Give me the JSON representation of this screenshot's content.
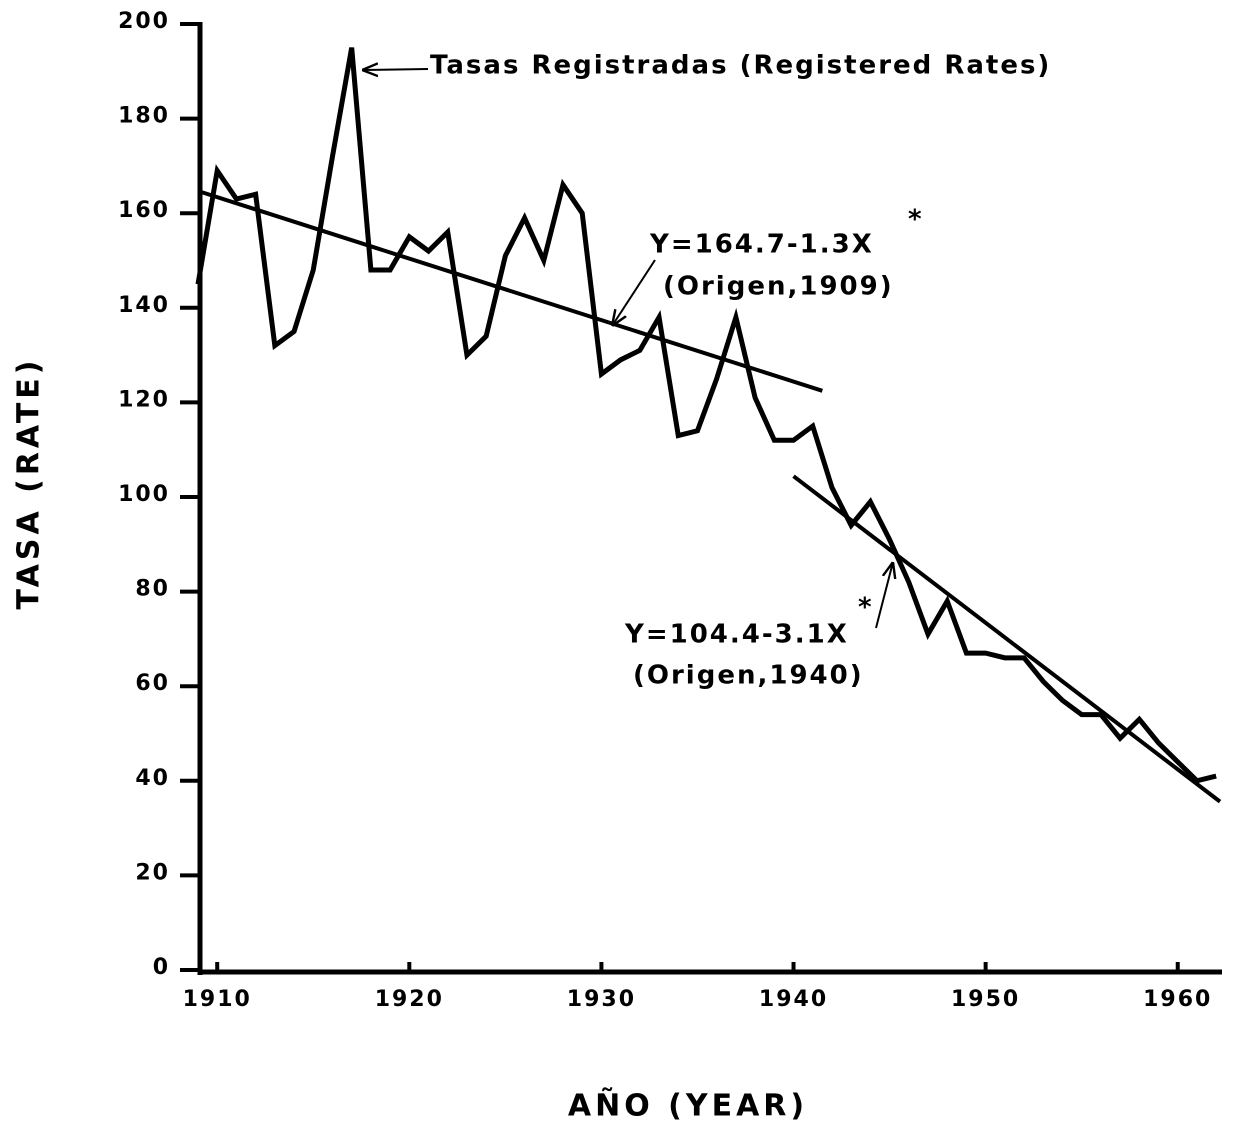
{
  "chart_data": {
    "type": "line",
    "xlabel": "AÑO (YEAR)",
    "ylabel": "TASA (RATE)",
    "x": [
      1909,
      1910,
      1911,
      1912,
      1913,
      1914,
      1915,
      1916,
      1917,
      1918,
      1919,
      1920,
      1921,
      1922,
      1923,
      1924,
      1925,
      1926,
      1927,
      1928,
      1929,
      1930,
      1931,
      1932,
      1933,
      1934,
      1935,
      1936,
      1937,
      1938,
      1939,
      1940,
      1941,
      1942,
      1943,
      1944,
      1945,
      1946,
      1947,
      1948,
      1949,
      1950,
      1951,
      1952,
      1953,
      1954,
      1955,
      1956,
      1957,
      1958,
      1959,
      1960,
      1961,
      1962
    ],
    "series": [
      {
        "color": "#000000",
        "values": [
          145,
          169,
          163,
          164,
          132,
          135,
          148,
          172,
          195,
          148,
          148,
          155,
          152,
          156,
          130,
          134,
          151,
          159,
          150,
          166,
          160,
          126,
          129,
          131,
          138,
          113,
          114,
          125,
          138,
          121,
          112,
          112,
          115,
          102,
          94,
          99,
          91,
          82,
          71,
          78,
          67,
          67,
          66,
          66,
          61,
          57,
          54,
          54,
          49,
          53,
          48,
          44,
          40,
          41
        ]
      }
    ],
    "trend_lines": [
      {
        "color": "#000000",
        "x": [
          1909,
          1941.5
        ],
        "values": [
          164.7,
          122.45
        ]
      },
      {
        "color": "#000000",
        "x": [
          1940,
          1962.2
        ],
        "values": [
          104.4,
          35.6
        ]
      }
    ],
    "annotations": {
      "registered": "Tasas Registradas (Registered Rates)",
      "eq1": "Y=164.7-1.3X",
      "eq1_star": "*",
      "eq1_origin": "(Origen,1909)",
      "eq2": "Y=104.4-3.1X",
      "eq2_star": "*",
      "eq2_origin": "(Origen,1940)"
    },
    "xlim": [
      1909,
      1962.2
    ],
    "ylim": [
      0,
      200
    ],
    "xticks": [
      1910,
      1920,
      1930,
      1940,
      1950,
      1960
    ],
    "yticks": [
      0,
      20,
      40,
      60,
      80,
      100,
      120,
      140,
      160,
      180,
      200
    ]
  }
}
